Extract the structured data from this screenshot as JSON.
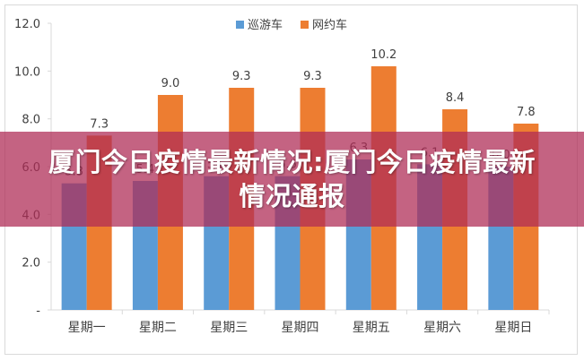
{
  "chart_data": {
    "type": "bar",
    "categories": [
      "星期一",
      "星期二",
      "星期三",
      "星期四",
      "星期五",
      "星期六",
      "星期日"
    ],
    "series": [
      {
        "name": "巡游车",
        "color": "#5b9bd5",
        "values": [
          5.3,
          5.4,
          5.6,
          5.6,
          6.3,
          6.1,
          6.0
        ],
        "labels": [
          "5.3",
          "5.4",
          "5.6",
          "5.6",
          "6.3",
          "6.1",
          "6.0"
        ]
      },
      {
        "name": "网约车",
        "color": "#ed7d31",
        "values": [
          7.3,
          9.0,
          9.3,
          9.3,
          10.2,
          8.4,
          7.8
        ],
        "labels": [
          "7.3",
          "9.0",
          "9.3",
          "9.3",
          "10.2",
          "8.4",
          "7.8"
        ]
      }
    ],
    "ylim": [
      0,
      12
    ],
    "yticks": [
      "-",
      "2.0",
      "4.0",
      "6.0",
      "8.0",
      "10.0",
      "12.0"
    ],
    "grid": false,
    "legend_position": "top-center"
  },
  "banner": {
    "text": "厦门今日疫情最新情况:厦门今日疫情最新情况通报",
    "background": "#b02c56"
  },
  "colors": {
    "axis": "#d9d9d9",
    "text": "#404040"
  }
}
